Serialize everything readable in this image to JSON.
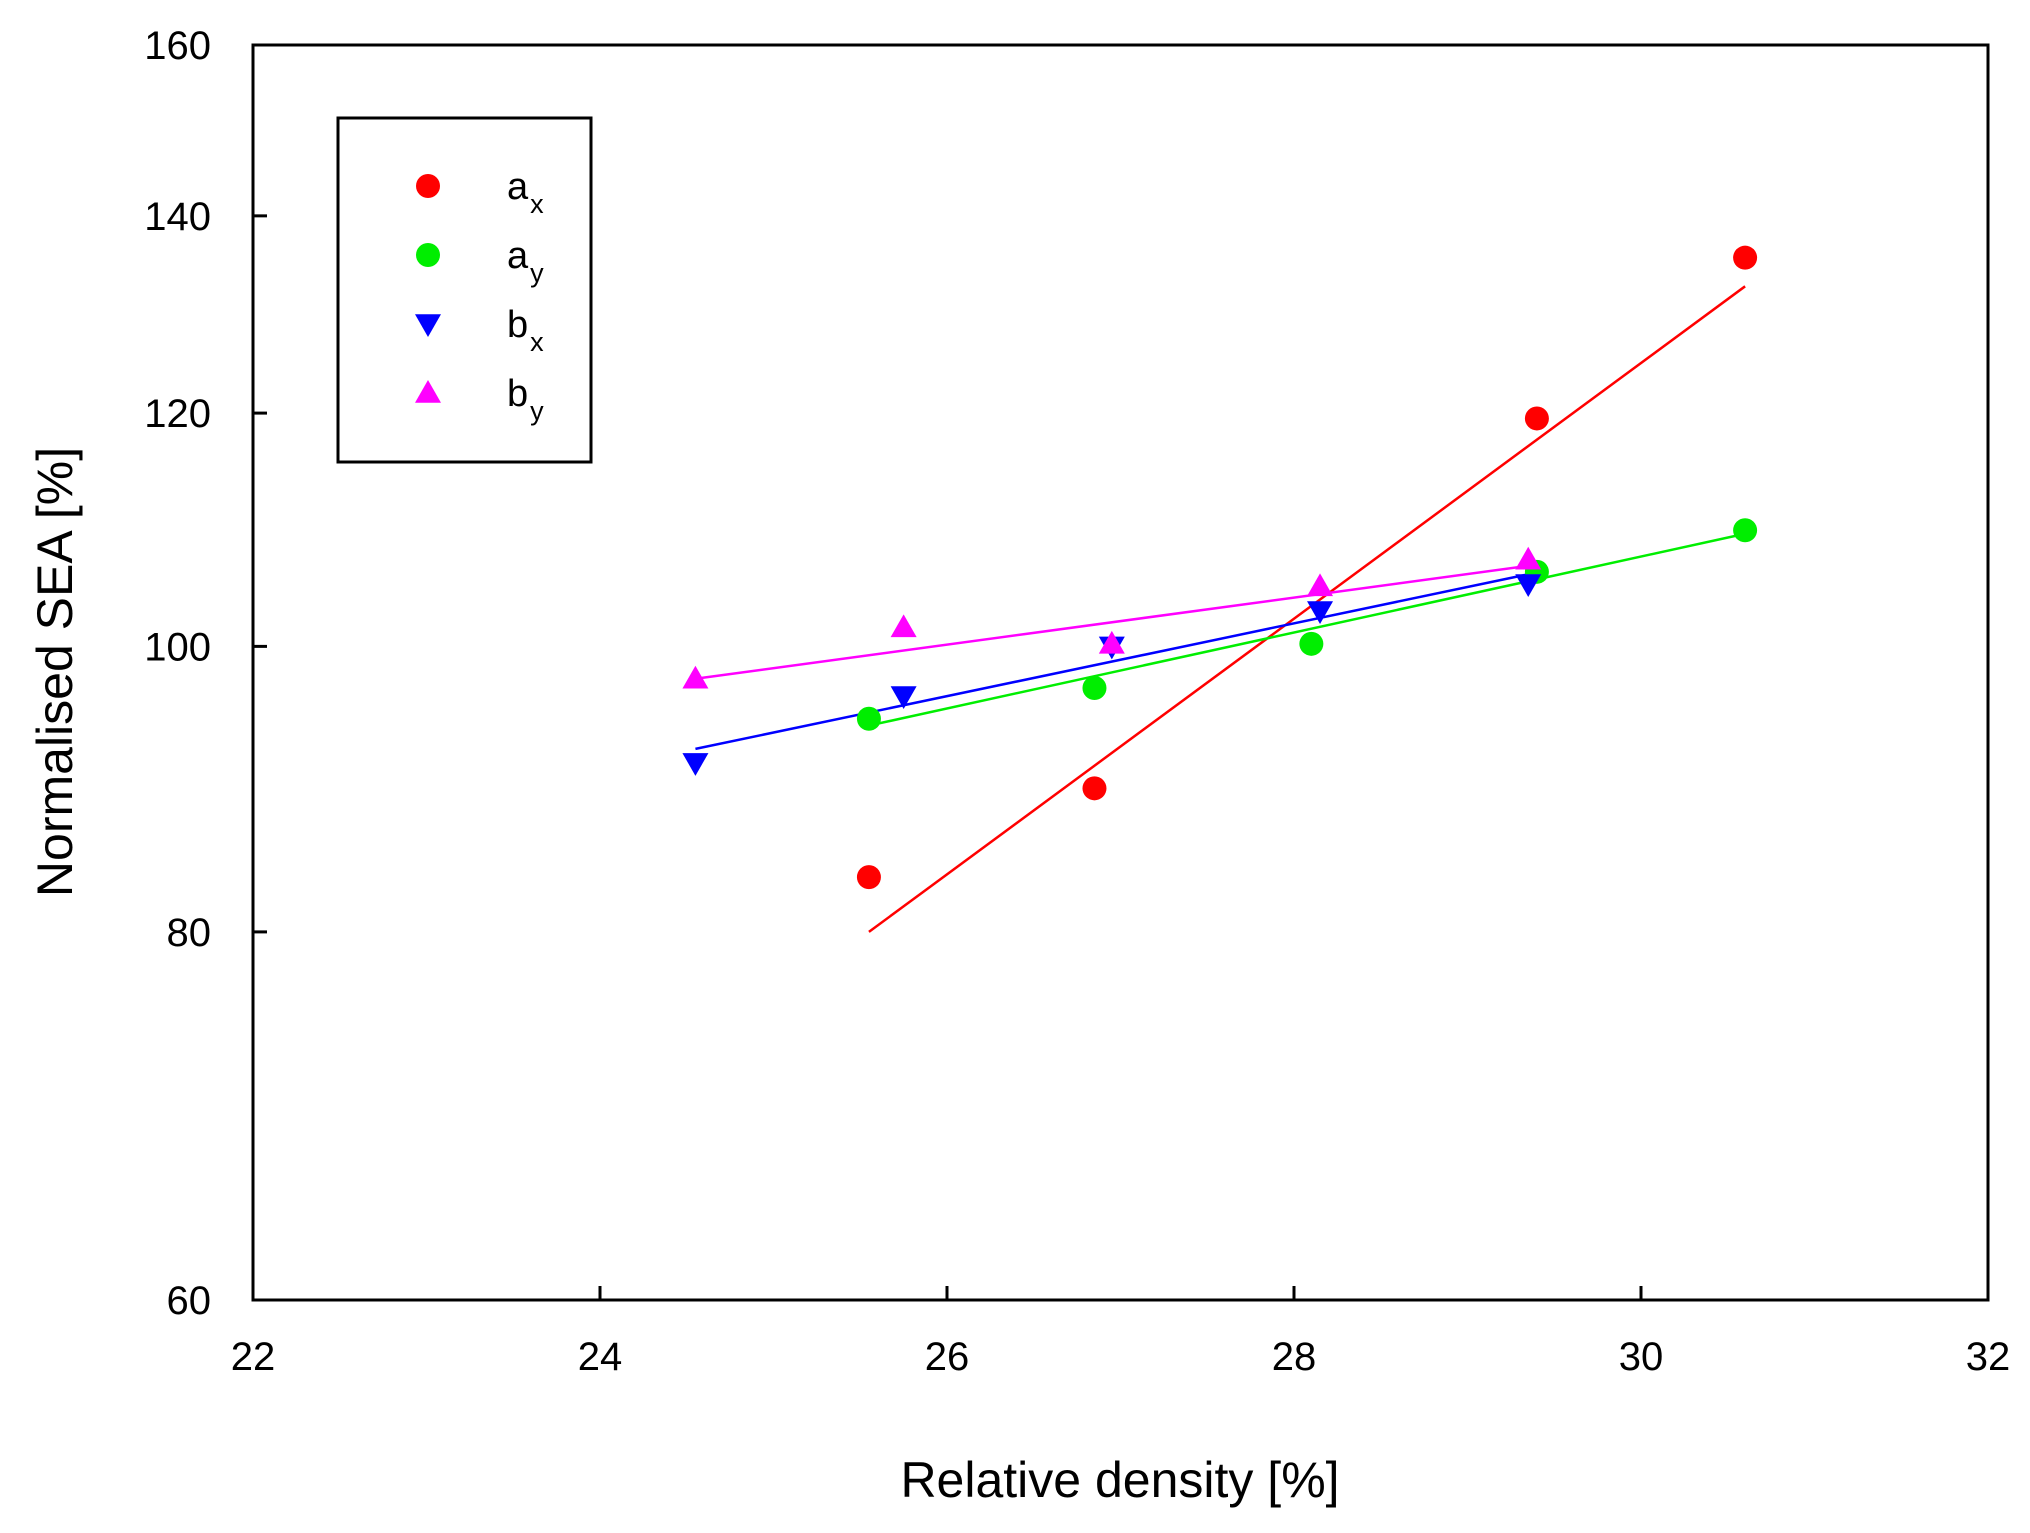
{
  "chart_data": {
    "type": "scatter",
    "title": "",
    "xlabel": "Relative density [%]",
    "ylabel": "Normalised SEA [%]",
    "xlim": [
      22,
      32
    ],
    "ylim": [
      60,
      160
    ],
    "y_scale": "log",
    "xticks": [
      22,
      24,
      26,
      28,
      30,
      32
    ],
    "yticks": [
      60,
      80,
      100,
      120,
      140,
      160
    ],
    "xtick_labels": [
      "22",
      "24",
      "26",
      "28",
      "30",
      "32"
    ],
    "ytick_labels": [
      "60",
      "80",
      "100",
      "120",
      "140",
      "160"
    ],
    "grid": false,
    "legend_position": "top-left",
    "series": [
      {
        "name": "ax",
        "base": "a",
        "sub": "x",
        "color": "#ff0000",
        "marker": "circle",
        "x": [
          25.55,
          26.85,
          29.4,
          30.6
        ],
        "y": [
          83.5,
          89.5,
          119.5,
          135.5
        ],
        "fit": {
          "x": [
            25.55,
            30.6
          ],
          "y": [
            80,
            132.5
          ]
        }
      },
      {
        "name": "ay",
        "base": "a",
        "sub": "y",
        "color": "#00ee00",
        "marker": "circle",
        "x": [
          25.55,
          26.85,
          28.1,
          29.4,
          30.6
        ],
        "y": [
          94.5,
          96.8,
          100.2,
          106,
          109.5
        ],
        "fit": {
          "x": [
            25.55,
            30.6
          ],
          "y": [
            94,
            109.2
          ]
        }
      },
      {
        "name": "bx",
        "base": "b",
        "sub": "x",
        "color": "#0000ff",
        "marker": "triangle-down",
        "x": [
          24.55,
          25.75,
          26.95,
          28.15,
          29.35
        ],
        "y": [
          91.3,
          96.2,
          100,
          102.8,
          105
        ],
        "fit": {
          "x": [
            24.55,
            29.35
          ],
          "y": [
            92.3,
            105.8
          ]
        }
      },
      {
        "name": "by",
        "base": "b",
        "sub": "y",
        "color": "#ff00ff",
        "marker": "triangle-up",
        "x": [
          24.55,
          25.75,
          26.95,
          28.15,
          29.35
        ],
        "y": [
          97.5,
          101.5,
          100.2,
          104.8,
          107
        ],
        "fit": {
          "x": [
            24.55,
            29.35
          ],
          "y": [
            97.5,
            106.5
          ]
        }
      }
    ]
  }
}
